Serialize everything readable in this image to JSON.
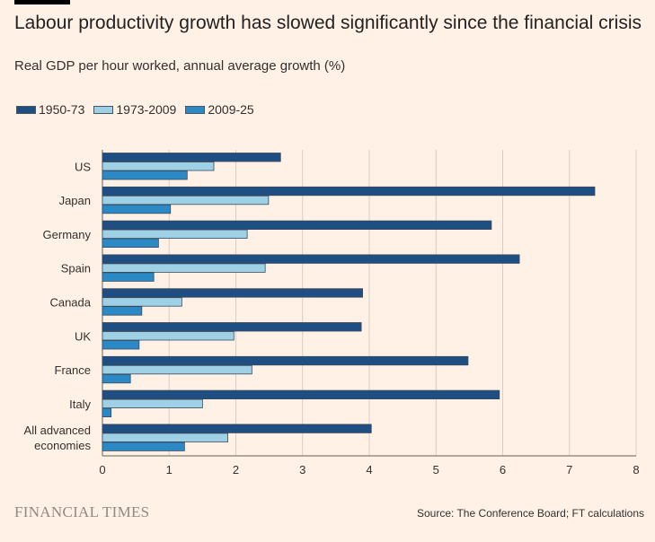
{
  "header": {
    "title": "Labour productivity growth has slowed significantly since the financial crisis",
    "subtitle": "Real GDP per hour worked, annual average growth (%)"
  },
  "footer": {
    "logo": "FINANCIAL TIMES",
    "source": "Source: The Conference Board; FT calculations"
  },
  "colors": {
    "background": "#fff1e5",
    "series": [
      "#1f4e82",
      "#9ed1e6",
      "#2b8ac6"
    ],
    "grid": "#d8cec4"
  },
  "chart_data": {
    "type": "bar",
    "orientation": "horizontal",
    "categories": [
      [
        "US"
      ],
      [
        "Japan"
      ],
      [
        "Germany"
      ],
      [
        "Spain"
      ],
      [
        "Canada"
      ],
      [
        "UK"
      ],
      [
        "France"
      ],
      [
        "Italy"
      ],
      [
        "All advanced",
        "economies"
      ]
    ],
    "series": [
      {
        "name": "1950-73",
        "values": [
          2.67,
          7.38,
          5.83,
          6.25,
          3.9,
          3.88,
          5.48,
          5.95,
          4.03
        ]
      },
      {
        "name": "1973-2009",
        "values": [
          1.67,
          2.49,
          2.17,
          2.44,
          1.19,
          1.97,
          2.24,
          1.5,
          1.88
        ]
      },
      {
        "name": "2009-25",
        "values": [
          1.27,
          1.02,
          0.84,
          0.77,
          0.59,
          0.55,
          0.42,
          0.13,
          1.23
        ]
      }
    ],
    "xlim": [
      0,
      8
    ],
    "xticks": [
      0,
      1,
      2,
      3,
      4,
      5,
      6,
      7,
      8
    ],
    "grid": true,
    "legend_position": "top-left"
  }
}
